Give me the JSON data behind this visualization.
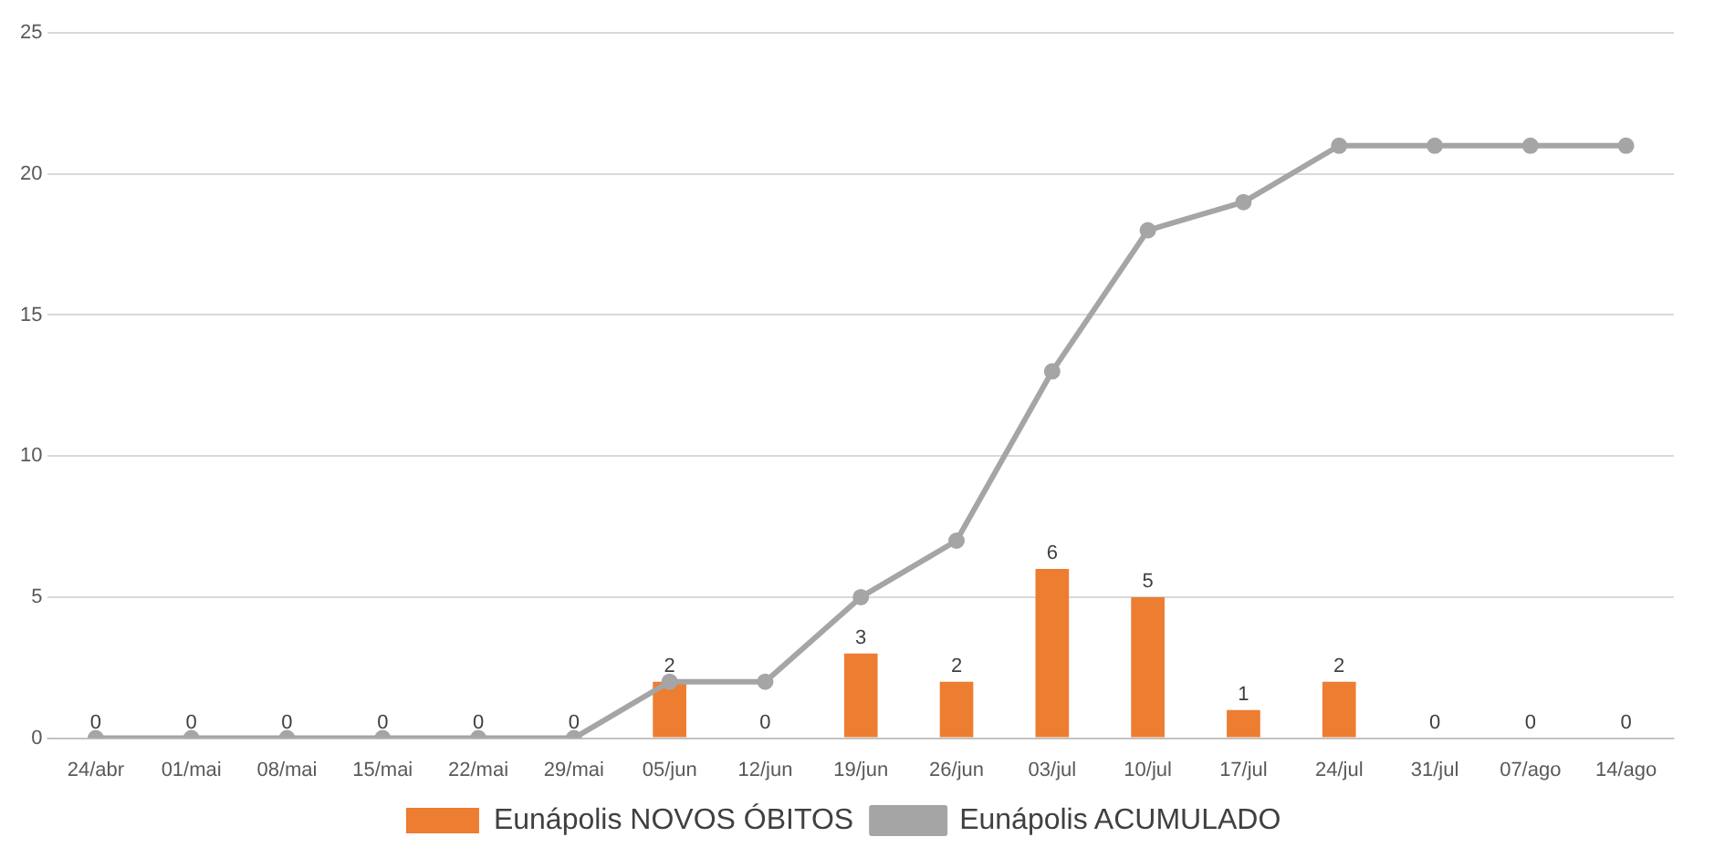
{
  "chart_data": {
    "type": "bar",
    "categories": [
      "24/abr",
      "01/mai",
      "08/mai",
      "15/mai",
      "22/mai",
      "29/mai",
      "05/jun",
      "12/jun",
      "19/jun",
      "26/jun",
      "03/jul",
      "10/jul",
      "17/jul",
      "24/jul",
      "31/jul",
      "07/ago",
      "14/ago"
    ],
    "series": [
      {
        "name": "Eunápolis NOVOS ÓBITOS",
        "color": "#ed7d31",
        "values": [
          0,
          0,
          0,
          0,
          0,
          0,
          2,
          0,
          3,
          2,
          6,
          5,
          1,
          2,
          0,
          0,
          0
        ],
        "value_labels": [
          "0",
          "0",
          "0",
          "0",
          "0",
          "0",
          "2",
          "0",
          "3",
          "2",
          "6",
          "5",
          "1",
          "2",
          "0",
          "0",
          "0"
        ]
      },
      {
        "name": "Eunápolis ACUMULADO",
        "type": "line",
        "color": "#a5a5a5",
        "marker": "circle",
        "values": [
          0,
          0,
          0,
          0,
          0,
          0,
          2,
          2,
          5,
          7,
          13,
          18,
          19,
          21,
          21,
          21,
          21
        ]
      }
    ],
    "ylim": [
      0,
      25
    ],
    "yticks": [
      0,
      5,
      10,
      15,
      20,
      25
    ],
    "grid": "y",
    "legend": "bottom"
  }
}
